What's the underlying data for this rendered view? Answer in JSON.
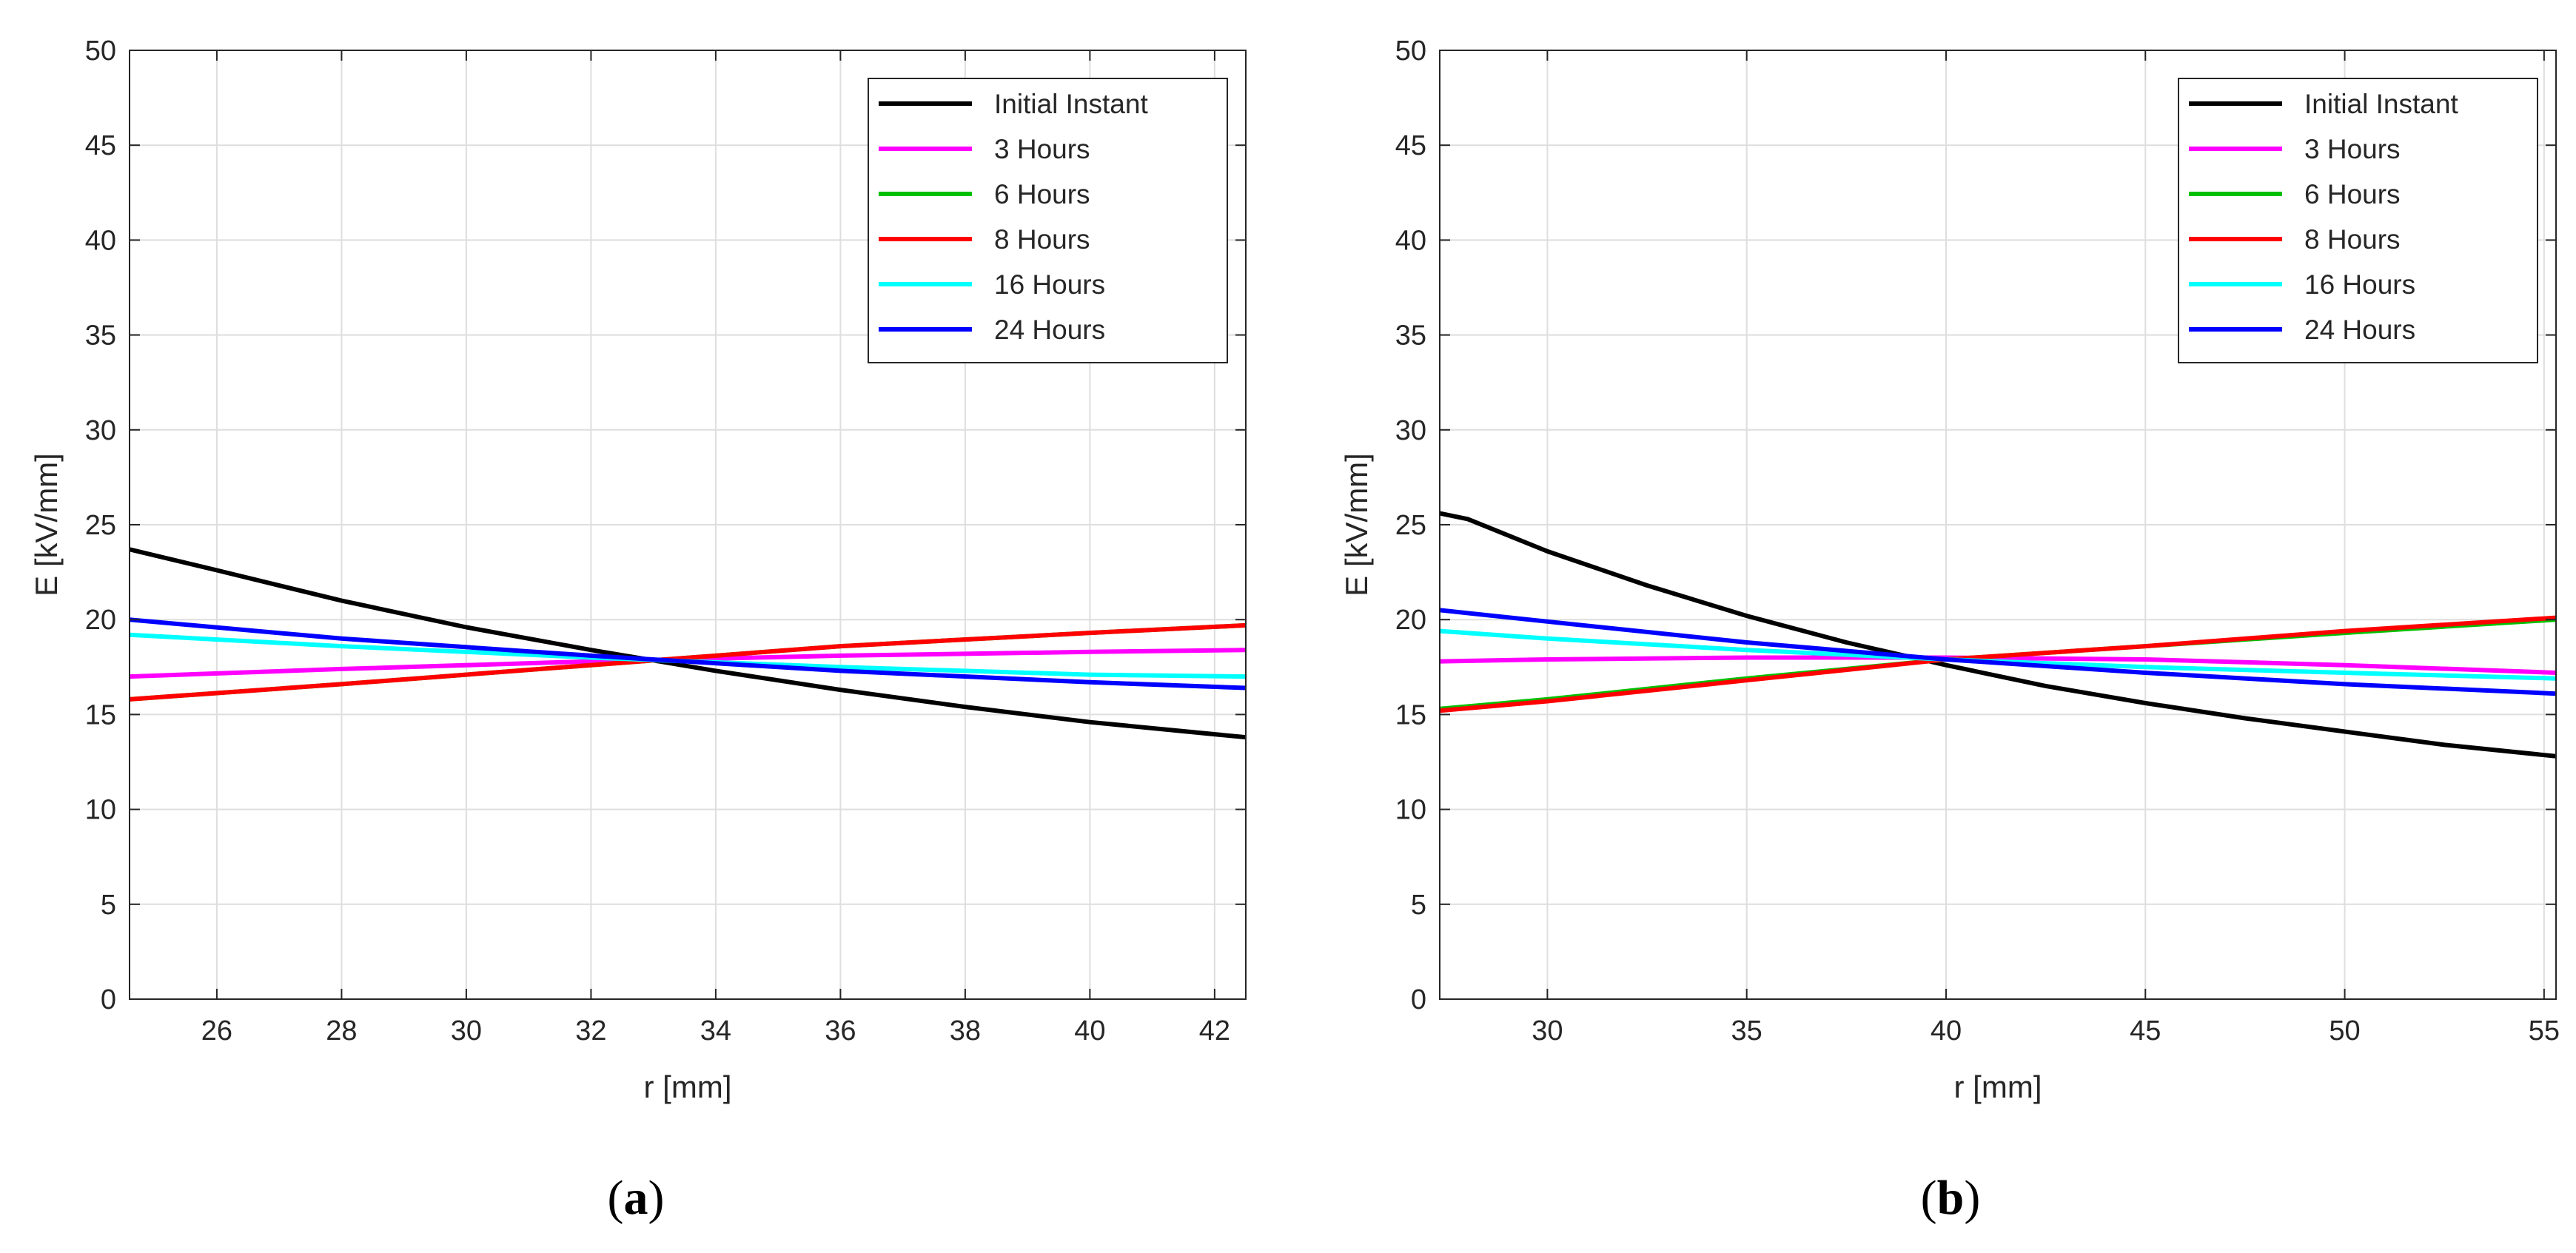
{
  "colors": {
    "initial": "#000000",
    "h3": "#ff00ff",
    "h6": "#00c000",
    "h8": "#ff0000",
    "h16": "#00ffff",
    "h24": "#0000ff",
    "grid": "#dedede",
    "axes": "#262626"
  },
  "chart_data": [
    {
      "type": "line",
      "caption_letter": "a",
      "xlabel": "r [mm]",
      "ylabel": "E [kV/mm]",
      "xlim": [
        24.6,
        42.5
      ],
      "ylim": [
        0,
        50
      ],
      "xticks": [
        26,
        28,
        30,
        32,
        34,
        36,
        38,
        40,
        42
      ],
      "yticks": [
        0,
        5,
        10,
        15,
        20,
        25,
        30,
        35,
        40,
        45,
        50
      ],
      "grid": true,
      "legend_position": "top-right",
      "series": [
        {
          "name": "Initial Instant",
          "color": "#000000",
          "x": [
            24.6,
            26,
            28,
            30,
            32,
            34,
            36,
            38,
            40,
            42.5
          ],
          "y": [
            23.7,
            22.6,
            21.0,
            19.6,
            18.4,
            17.3,
            16.3,
            15.4,
            14.6,
            13.8
          ]
        },
        {
          "name": "3 Hours",
          "color": "#ff00ff",
          "x": [
            24.6,
            28,
            32,
            36,
            40,
            42.5
          ],
          "y": [
            17.0,
            17.4,
            17.8,
            18.1,
            18.3,
            18.4
          ]
        },
        {
          "name": "6 Hours",
          "color": "#00c000",
          "x": [
            24.6,
            28,
            32,
            36,
            40,
            42.5
          ],
          "y": [
            15.8,
            16.6,
            17.6,
            18.6,
            19.3,
            19.7
          ]
        },
        {
          "name": "8 Hours",
          "color": "#ff0000",
          "x": [
            24.6,
            28,
            32,
            36,
            40,
            42.5
          ],
          "y": [
            15.8,
            16.6,
            17.6,
            18.6,
            19.3,
            19.7
          ]
        },
        {
          "name": "16 Hours",
          "color": "#00ffff",
          "x": [
            24.6,
            28,
            32,
            36,
            40,
            42.5
          ],
          "y": [
            19.2,
            18.6,
            18.0,
            17.5,
            17.1,
            17.0
          ]
        },
        {
          "name": "24 Hours",
          "color": "#0000ff",
          "x": [
            24.6,
            28,
            32,
            36,
            40,
            42.5
          ],
          "y": [
            20.0,
            19.0,
            18.1,
            17.3,
            16.7,
            16.4
          ]
        }
      ]
    },
    {
      "type": "line",
      "caption_letter": "b",
      "xlabel": "r [mm]",
      "ylabel": "E [kV/mm]",
      "xlim": [
        27.3,
        55.3
      ],
      "ylim": [
        0,
        50
      ],
      "xticks": [
        30,
        35,
        40,
        45,
        50,
        55
      ],
      "yticks": [
        0,
        5,
        10,
        15,
        20,
        25,
        30,
        35,
        40,
        45,
        50
      ],
      "grid": true,
      "legend_position": "top-right",
      "series": [
        {
          "name": "Initial Instant",
          "color": "#000000",
          "x": [
            27.3,
            28,
            30,
            32.5,
            35,
            37.5,
            40,
            42.5,
            45,
            47.5,
            50,
            52.5,
            55.3
          ],
          "y": [
            25.6,
            25.3,
            23.6,
            21.8,
            20.2,
            18.8,
            17.6,
            16.5,
            15.6,
            14.8,
            14.1,
            13.4,
            12.8
          ]
        },
        {
          "name": "3 Hours",
          "color": "#ff00ff",
          "x": [
            27.3,
            30,
            35,
            40,
            45,
            50,
            55.3
          ],
          "y": [
            17.8,
            17.9,
            18.0,
            18.0,
            17.9,
            17.6,
            17.2
          ]
        },
        {
          "name": "6 Hours",
          "color": "#00c000",
          "x": [
            27.3,
            30,
            35,
            40,
            45,
            50,
            55.3
          ],
          "y": [
            15.3,
            15.8,
            16.9,
            17.9,
            18.6,
            19.3,
            20.0
          ]
        },
        {
          "name": "8 Hours",
          "color": "#ff0000",
          "x": [
            27.3,
            30,
            35,
            40,
            45,
            50,
            55.3
          ],
          "y": [
            15.2,
            15.7,
            16.8,
            17.9,
            18.6,
            19.4,
            20.1
          ]
        },
        {
          "name": "16 Hours",
          "color": "#00ffff",
          "x": [
            27.3,
            30,
            35,
            40,
            45,
            50,
            55.3
          ],
          "y": [
            19.4,
            19.0,
            18.4,
            17.9,
            17.5,
            17.2,
            16.9
          ]
        },
        {
          "name": "24 Hours",
          "color": "#0000ff",
          "x": [
            27.3,
            30,
            35,
            40,
            45,
            50,
            55.3
          ],
          "y": [
            20.5,
            19.9,
            18.8,
            17.9,
            17.2,
            16.6,
            16.1
          ]
        }
      ]
    }
  ]
}
